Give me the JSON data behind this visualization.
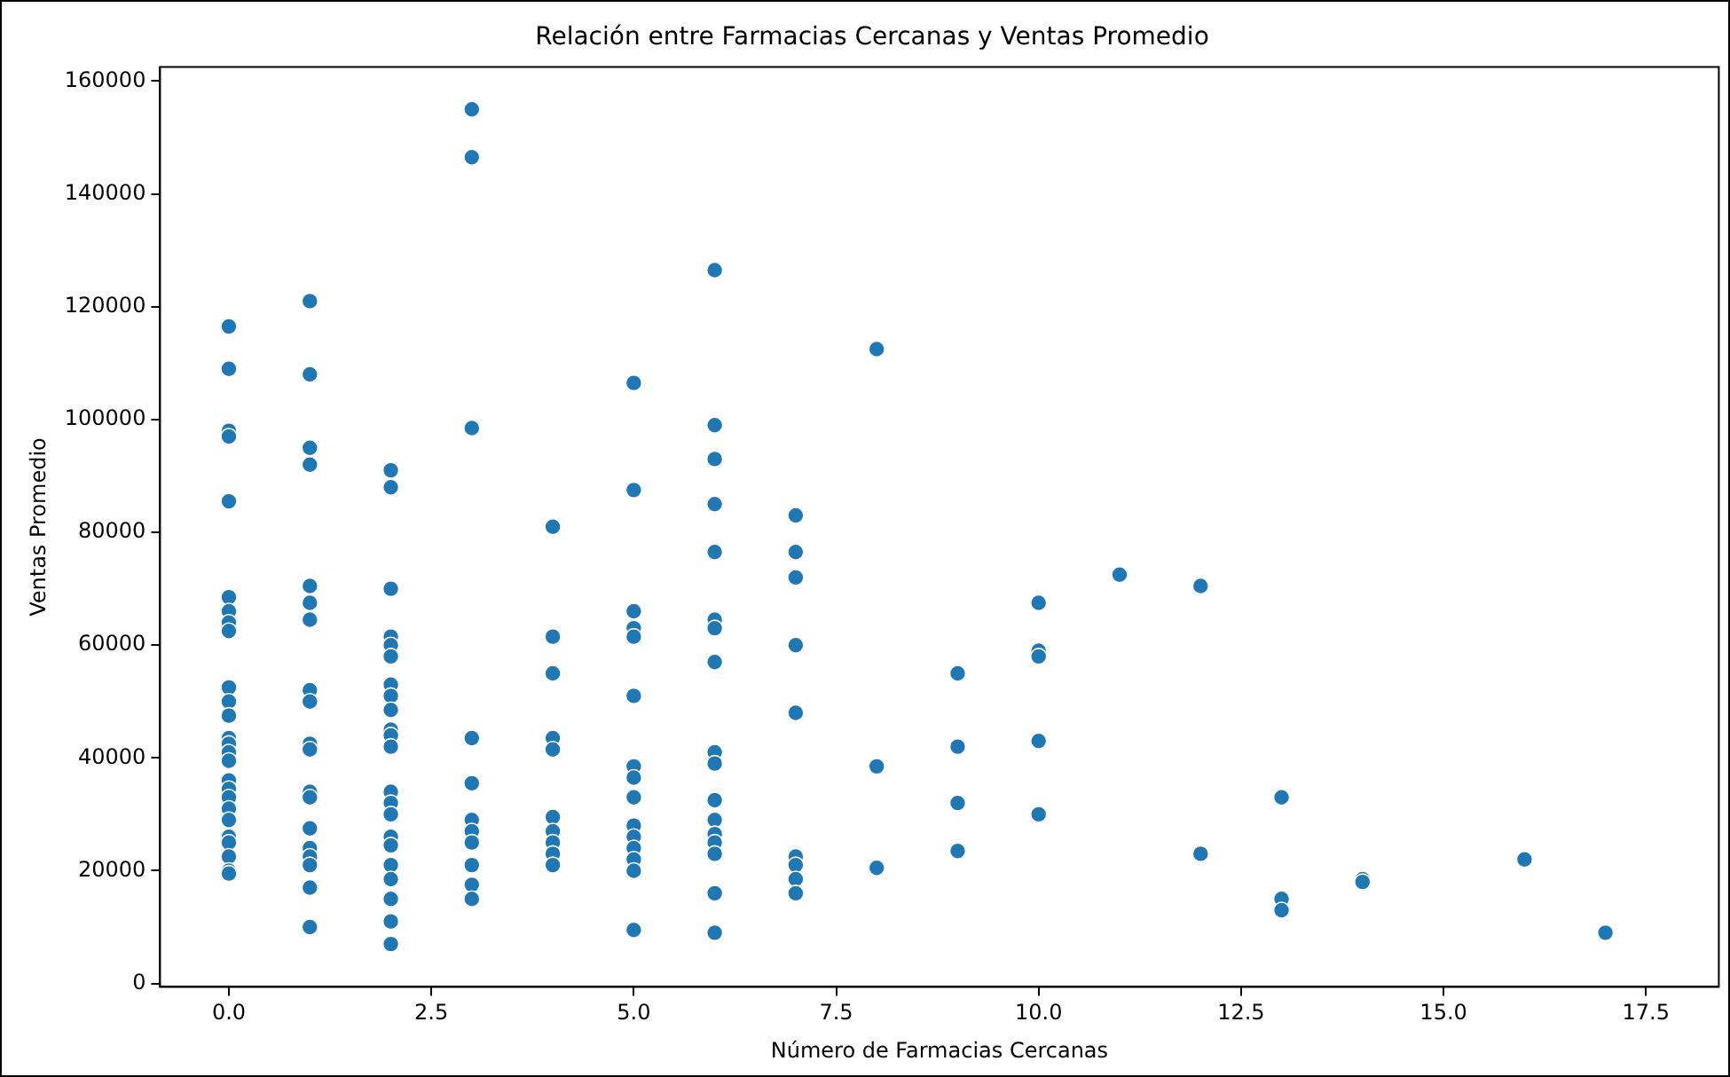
{
  "chart_data": {
    "type": "scatter",
    "title": "Relación entre Farmacias Cercanas y Ventas Promedio",
    "xlabel": "Número de Farmacias Cercanas",
    "ylabel": "Ventas Promedio",
    "x": [
      0,
      0,
      0,
      0,
      0,
      0,
      0,
      0,
      0,
      0,
      0,
      0,
      0,
      0,
      0,
      0,
      0,
      0,
      0,
      0,
      0,
      0,
      0,
      0,
      0,
      0,
      1,
      1,
      1,
      1,
      1,
      1,
      1,
      1,
      1,
      1,
      1,
      1,
      1,
      1,
      1,
      1,
      1,
      1,
      1,
      2,
      2,
      2,
      2,
      2,
      2,
      2,
      2,
      2,
      2,
      2,
      2,
      2,
      2,
      2,
      2,
      2,
      2,
      2,
      2,
      2,
      2,
      3,
      3,
      3,
      3,
      3,
      3,
      3,
      3,
      3,
      3,
      3,
      4,
      4,
      4,
      4,
      4,
      4,
      4,
      4,
      4,
      4,
      5,
      5,
      5,
      5,
      5,
      5,
      5,
      5,
      5,
      5,
      5,
      5,
      5,
      5,
      5,
      6,
      6,
      6,
      6,
      6,
      6,
      6,
      6,
      6,
      6,
      6,
      6,
      6,
      6,
      6,
      6,
      6,
      7,
      7,
      7,
      7,
      7,
      7,
      7,
      7,
      7,
      8,
      8,
      8,
      9,
      9,
      9,
      9,
      10,
      10,
      10,
      10,
      10,
      11,
      12,
      12,
      13,
      13,
      13,
      14,
      14,
      16,
      17
    ],
    "values": [
      116500,
      109000,
      98000,
      97000,
      85500,
      68500,
      66000,
      64000,
      62500,
      52500,
      50000,
      47500,
      43500,
      42500,
      41000,
      39500,
      36000,
      34500,
      33000,
      31000,
      29000,
      26000,
      25000,
      22500,
      20000,
      19500,
      121000,
      108000,
      95000,
      92000,
      70500,
      67500,
      64500,
      52000,
      50000,
      42500,
      41500,
      34000,
      33000,
      27500,
      24000,
      22500,
      21000,
      17000,
      10000,
      91000,
      88000,
      70000,
      61500,
      60000,
      58000,
      53000,
      51000,
      48500,
      45000,
      44000,
      42000,
      34000,
      32000,
      30000,
      26000,
      24500,
      21000,
      18500,
      15000,
      11000,
      7000,
      155000,
      146500,
      98500,
      43500,
      35500,
      29000,
      27000,
      25000,
      21000,
      17500,
      15000,
      81000,
      61500,
      55000,
      43500,
      41500,
      29500,
      27000,
      25000,
      23000,
      21000,
      106500,
      87500,
      66000,
      63000,
      61500,
      51000,
      38500,
      36500,
      33000,
      28000,
      26000,
      24000,
      22000,
      20000,
      9500,
      126500,
      99000,
      93000,
      85000,
      76500,
      64500,
      63000,
      57000,
      41000,
      39000,
      32500,
      29000,
      26500,
      25000,
      23000,
      16000,
      9000,
      83000,
      76500,
      72000,
      60000,
      48000,
      22500,
      21000,
      18500,
      16000,
      112500,
      38500,
      20500,
      55000,
      42000,
      32000,
      23500,
      67500,
      59000,
      58000,
      43000,
      30000,
      72500,
      70500,
      23000,
      33000,
      15000,
      13000,
      18500,
      18000,
      22000,
      9000
    ],
    "color": "#1f77b4",
    "marker": "circle",
    "xlim": [
      -0.85,
      18.4
    ],
    "xticks": [
      {
        "value": 0,
        "label": "0.0"
      },
      {
        "value": 2.5,
        "label": "2.5"
      },
      {
        "value": 5,
        "label": "5.0"
      },
      {
        "value": 7.5,
        "label": "7.5"
      },
      {
        "value": 10,
        "label": "10.0"
      },
      {
        "value": 12.5,
        "label": "12.5"
      },
      {
        "value": 15,
        "label": "15.0"
      },
      {
        "value": 17.5,
        "label": "17.5"
      }
    ],
    "ylim": [
      -600,
      162500
    ],
    "yticks": [
      0,
      20000,
      40000,
      60000,
      80000,
      100000,
      120000,
      140000,
      160000
    ],
    "grid": false,
    "legend": false
  }
}
